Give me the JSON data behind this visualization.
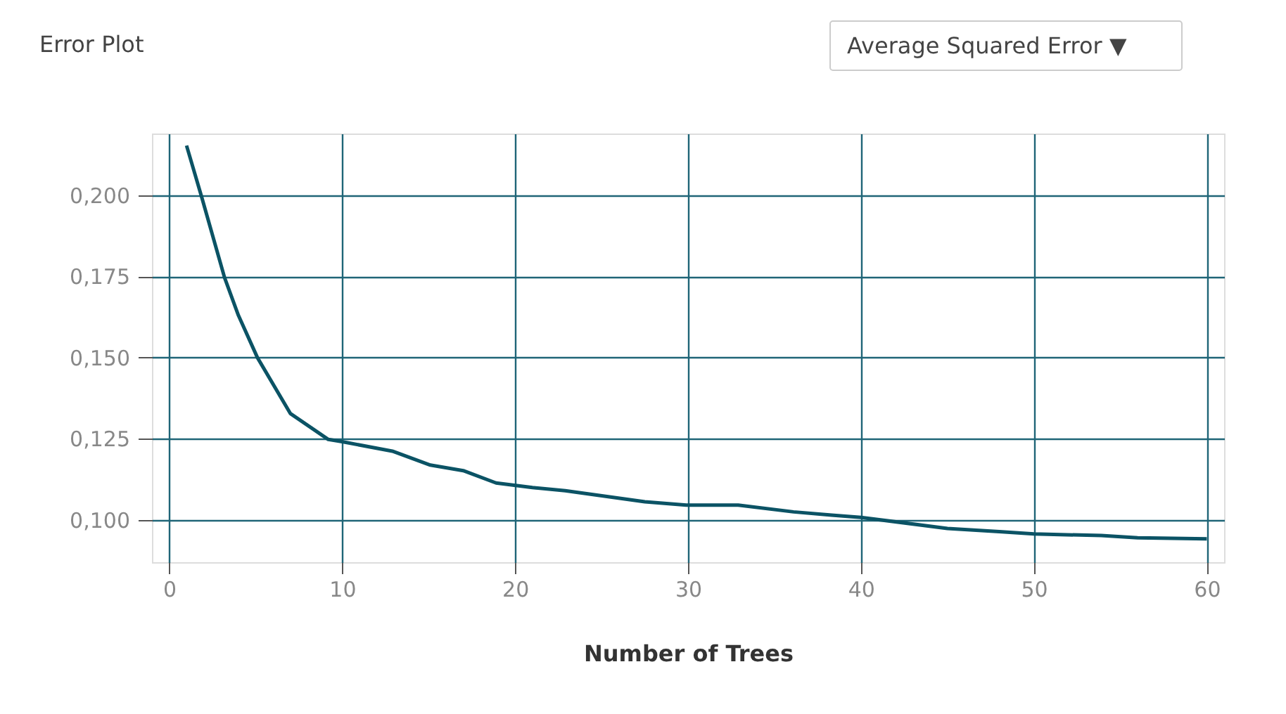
{
  "chart_data": {
    "type": "line",
    "title": "Error Plot",
    "xlabel": "Number of Trees",
    "annotations": [
      "Average Squared Error ▼"
    ],
    "x": [
      1,
      1.9,
      3.2,
      4.0,
      5.1,
      7.0,
      9.2,
      10,
      12.9,
      15.1,
      17,
      18.9,
      21,
      22.9,
      27.5,
      29.9,
      32.9,
      36.1,
      38.3,
      40,
      45,
      48,
      50,
      53.9,
      56,
      60
    ],
    "series": [
      {
        "color": "#0b5365",
        "values": [
          0.2153,
          0.199,
          0.1746,
          0.163,
          0.15,
          0.1328,
          0.1248,
          0.1241,
          0.1212,
          0.1169,
          0.1152,
          0.1114,
          0.11,
          0.109,
          0.1056,
          0.1046,
          0.1046,
          0.1025,
          0.1015,
          0.1008,
          0.0974,
          0.0964,
          0.0957,
          0.0952,
          0.0945,
          0.0942
        ]
      }
    ],
    "xlim": [
      -1,
      61
    ],
    "ylim": [
      0.087,
      0.219
    ],
    "xticks": [
      0,
      10,
      20,
      30,
      40,
      50,
      60
    ],
    "yticks": [
      {
        "value": 0.1,
        "label": "0,100"
      },
      {
        "value": 0.125,
        "label": "0,125"
      },
      {
        "value": 0.15,
        "label": "0,150"
      },
      {
        "value": 0.175,
        "label": "0,175"
      },
      {
        "value": 0.2,
        "label": "0,200"
      }
    ],
    "grid": true,
    "legend": false,
    "marker": "none",
    "line_style": "solid"
  }
}
